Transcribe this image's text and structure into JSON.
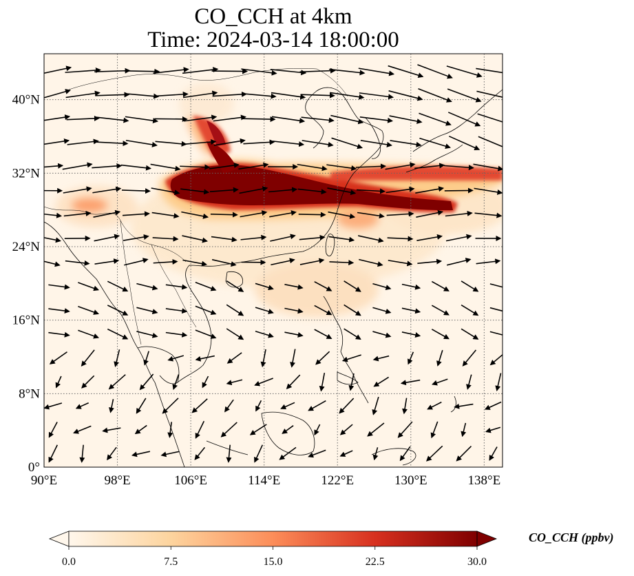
{
  "title_line1": "CO_CCH at 4km",
  "title_line2": "Time: 2024-03-14 18:00:00",
  "map": {
    "lon_range": [
      90,
      140
    ],
    "lat_range": [
      0,
      45
    ],
    "lon_ticks": [
      {
        "value": 90,
        "label": "90°E"
      },
      {
        "value": 98,
        "label": "98°E"
      },
      {
        "value": 106,
        "label": "106°E"
      },
      {
        "value": 114,
        "label": "114°E"
      },
      {
        "value": 122,
        "label": "122°E"
      },
      {
        "value": 130,
        "label": "130°E"
      },
      {
        "value": 138,
        "label": "138°E"
      }
    ],
    "lat_ticks": [
      {
        "value": 0,
        "label": "0°"
      },
      {
        "value": 8,
        "label": "8°N"
      },
      {
        "value": 16,
        "label": "16°N"
      },
      {
        "value": 24,
        "label": "24°N"
      },
      {
        "value": 32,
        "label": "32°N"
      },
      {
        "value": 40,
        "label": "40°N"
      }
    ],
    "gridlines": true,
    "wind_vectors": true,
    "colormap": "OrRd"
  },
  "colorbar": {
    "min": 0.0,
    "max": 30.0,
    "ticks": [
      "0.0",
      "7.5",
      "15.0",
      "22.5",
      "30.0"
    ],
    "label": "CO_CCH (ppbv)",
    "extend": "both",
    "colors": [
      "#fff7ec",
      "#fdd49e",
      "#fc8d59",
      "#d7301f",
      "#7f0000"
    ]
  },
  "plume": {
    "core_color": "#7f0000",
    "edge_color": "#d7301f",
    "halo_color": "#fdcc8a"
  }
}
